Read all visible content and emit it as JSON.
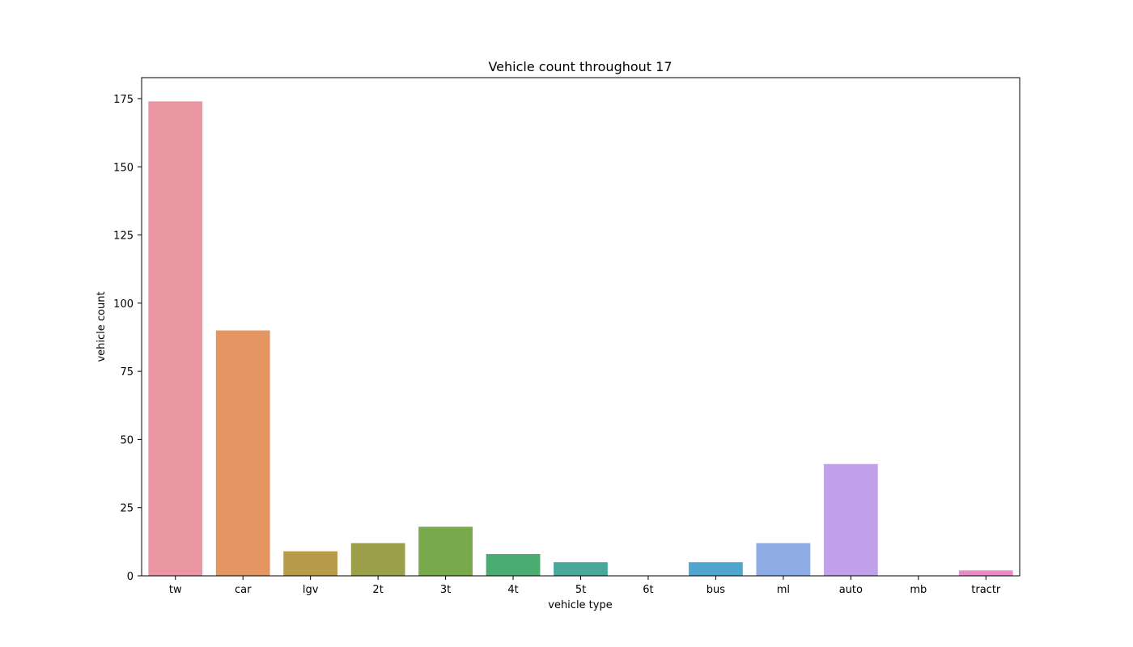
{
  "chart_data": {
    "type": "bar",
    "title": "Vehicle count throughout 17",
    "xlabel": "vehicle type",
    "ylabel": "vehicle count",
    "categories": [
      "tw",
      "car",
      "lgv",
      "2t",
      "3t",
      "4t",
      "5t",
      "6t",
      "bus",
      "ml",
      "auto",
      "mb",
      "tractr"
    ],
    "values": [
      174,
      90,
      9,
      12,
      18,
      8,
      5,
      0,
      5,
      12,
      41,
      0,
      2
    ],
    "colors": [
      "#ea96a3",
      "#e39562",
      "#b89b49",
      "#9c9f4a",
      "#78a94a",
      "#4aac71",
      "#4aa89a",
      "#4aa6b7",
      "#4ea6d0",
      "#8eade6",
      "#c0a1ea",
      "#e38fd8",
      "#e98bc6"
    ],
    "ylim": [
      0,
      182.7
    ],
    "yticks": [
      0,
      25,
      50,
      75,
      100,
      125,
      150,
      175
    ],
    "grid": false,
    "legend": "none"
  }
}
